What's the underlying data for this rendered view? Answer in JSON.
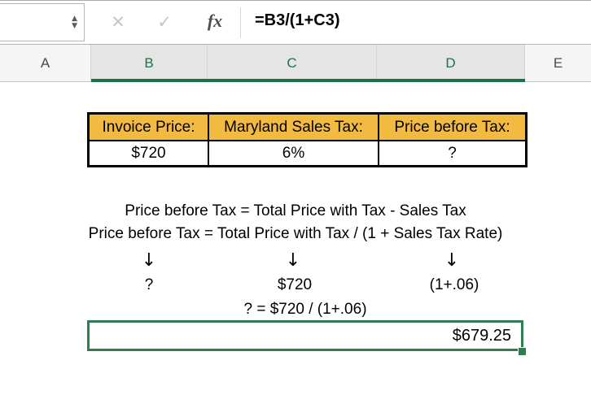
{
  "formula_bar": {
    "formula": "=B3/(1+C3)",
    "name_box_value": "",
    "cancel_icon": "✕",
    "enter_icon": "✓",
    "function_icon": "fx",
    "spinner_up": "▲",
    "spinner_down": "▼"
  },
  "column_headers": [
    {
      "label": "A",
      "selected": false
    },
    {
      "label": "B",
      "selected": true
    },
    {
      "label": "C",
      "selected": true
    },
    {
      "label": "D",
      "selected": true
    },
    {
      "label": "E",
      "selected": false
    }
  ],
  "table": {
    "headers": [
      "Invoice Price:",
      "Maryland Sales Tax:",
      "Price before Tax:"
    ],
    "values": [
      "$720",
      "6%",
      "?"
    ]
  },
  "notes": {
    "line1": "Price before Tax = Total Price with Tax - Sales Tax",
    "line2": "Price before Tax = Total Price with Tax / (1 + Sales Tax Rate)",
    "arrow": "↓",
    "mapping": [
      "?",
      "$720",
      "(1+.06)"
    ],
    "equation": "? = $720 / (1+.06)"
  },
  "result_cell": {
    "value": "$679.25"
  },
  "colors": {
    "header_fill": "#f3ba42",
    "excel_green": "#1e7145",
    "selection_border_green": "#2e7d51"
  }
}
